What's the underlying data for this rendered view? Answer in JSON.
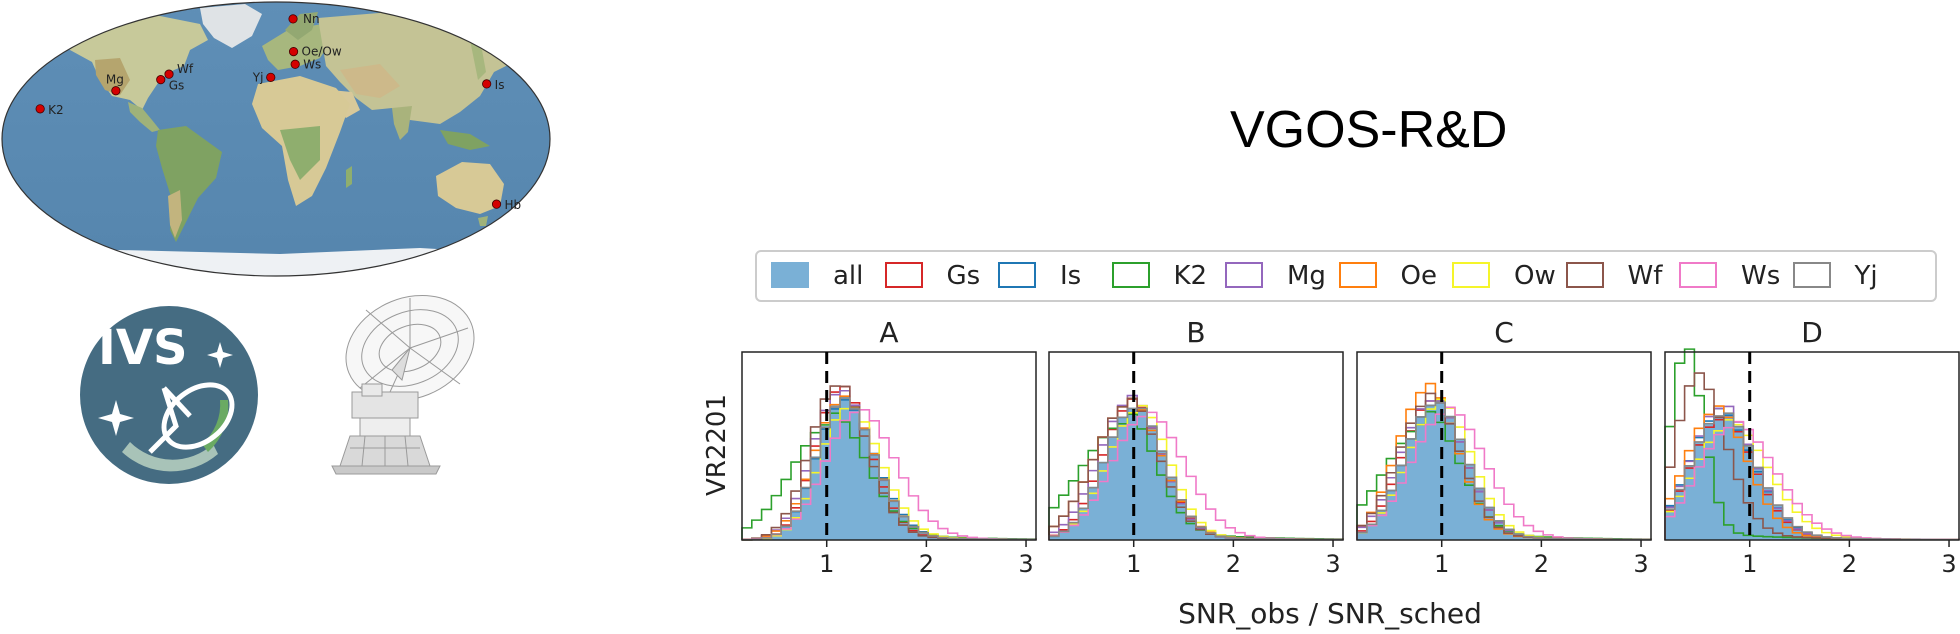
{
  "figure": {
    "title": "VGOS-R&D",
    "xlabel": "SNR_obs / SNR_sched",
    "ylabel": "VR2201"
  },
  "map": {
    "stations": [
      {
        "id": "Nn",
        "lon": 11.9,
        "lat": 78.9
      },
      {
        "id": "Oe/Ow",
        "lon": 11.9,
        "lat": 57.4
      },
      {
        "id": "Ws",
        "lon": 12.9,
        "lat": 49.1
      },
      {
        "id": "Yj",
        "lon": -3.5,
        "lat": 40.5
      },
      {
        "id": "Wf",
        "lon": -71.5,
        "lat": 42.6
      },
      {
        "id": "Gs",
        "lon": -76.8,
        "lat": 39.0
      },
      {
        "id": "Mg",
        "lon": -106.2,
        "lat": 31.7
      },
      {
        "id": "K2",
        "lon": -155.5,
        "lat": 19.8
      },
      {
        "id": "Is",
        "lon": 140.1,
        "lat": 36.2
      },
      {
        "id": "Hb",
        "lon": 147.4,
        "lat": -42.8
      }
    ],
    "station_color": "#d40000"
  },
  "logo": {
    "text": "IVS"
  },
  "chart_data": {
    "type": "histogram",
    "xlim": [
      0.15,
      3.1
    ],
    "xticks": [
      "1",
      "2",
      "3"
    ],
    "reference_line": 1,
    "legend": {
      "placement": "top",
      "entries": [
        "all",
        "Gs",
        "Is",
        "K2",
        "Mg",
        "Oe",
        "Ow",
        "Wf",
        "Ws",
        "Yj"
      ]
    },
    "colors": {
      "all": "#7ab0d6",
      "Gs": "#d62728",
      "Is": "#1f77b4",
      "K2": "#2ca02c",
      "Mg": "#9467bd",
      "Oe": "#ff7f0e",
      "Ow": "#f5f52a",
      "Wf": "#8c564b",
      "Ws": "#f07ac8",
      "Yj": "#888888"
    },
    "panels": [
      {
        "title": "A",
        "series": [
          {
            "name": "all",
            "peak": 1.15,
            "sl": 0.26,
            "sr": 0.32,
            "h": 0.74,
            "tail": 0.03
          },
          {
            "name": "Gs",
            "peak": 1.13,
            "sl": 0.25,
            "sr": 0.3,
            "h": 0.8,
            "tail": 0.03
          },
          {
            "name": "Is",
            "peak": 1.15,
            "sl": 0.26,
            "sr": 0.33,
            "h": 0.72,
            "tail": 0.03
          },
          {
            "name": "K2",
            "peak": 1.05,
            "sl": 0.4,
            "sr": 0.35,
            "h": 0.62,
            "tail": 0.06
          },
          {
            "name": "Mg",
            "peak": 1.12,
            "sl": 0.27,
            "sr": 0.33,
            "h": 0.78,
            "tail": 0.03
          },
          {
            "name": "Oe",
            "peak": 1.15,
            "sl": 0.28,
            "sr": 0.32,
            "h": 0.74,
            "tail": 0.03
          },
          {
            "name": "Ow",
            "peak": 1.2,
            "sl": 0.27,
            "sr": 0.33,
            "h": 0.7,
            "tail": 0.03
          },
          {
            "name": "Wf",
            "peak": 1.1,
            "sl": 0.27,
            "sr": 0.3,
            "h": 0.82,
            "tail": 0.03
          },
          {
            "name": "Ws",
            "peak": 1.3,
            "sl": 0.32,
            "sr": 0.38,
            "h": 0.68,
            "tail": 0.03
          },
          {
            "name": "Yj",
            "peak": 1.15,
            "sl": 0.26,
            "sr": 0.32,
            "h": 0.73,
            "tail": 0.03
          }
        ]
      },
      {
        "title": "B",
        "series": [
          {
            "name": "all",
            "peak": 1.0,
            "sl": 0.3,
            "sr": 0.3,
            "h": 0.7,
            "tail": 0.03
          },
          {
            "name": "Gs",
            "peak": 0.98,
            "sl": 0.3,
            "sr": 0.3,
            "h": 0.72,
            "tail": 0.03
          },
          {
            "name": "Is",
            "peak": 1.0,
            "sl": 0.3,
            "sr": 0.3,
            "h": 0.7,
            "tail": 0.03
          },
          {
            "name": "K2",
            "peak": 0.92,
            "sl": 0.45,
            "sr": 0.3,
            "h": 0.62,
            "tail": 0.07
          },
          {
            "name": "Mg",
            "peak": 0.97,
            "sl": 0.32,
            "sr": 0.3,
            "h": 0.74,
            "tail": 0.03
          },
          {
            "name": "Oe",
            "peak": 0.95,
            "sl": 0.35,
            "sr": 0.32,
            "h": 0.72,
            "tail": 0.04
          },
          {
            "name": "Ow",
            "peak": 1.05,
            "sl": 0.32,
            "sr": 0.3,
            "h": 0.69,
            "tail": 0.03
          },
          {
            "name": "Wf",
            "peak": 0.95,
            "sl": 0.35,
            "sr": 0.3,
            "h": 0.72,
            "tail": 0.04
          },
          {
            "name": "Ws",
            "peak": 1.12,
            "sl": 0.35,
            "sr": 0.38,
            "h": 0.66,
            "tail": 0.03
          },
          {
            "name": "Yj",
            "peak": 1.0,
            "sl": 0.3,
            "sr": 0.3,
            "h": 0.7,
            "tail": 0.03
          }
        ]
      },
      {
        "title": "C",
        "series": [
          {
            "name": "all",
            "peak": 0.92,
            "sl": 0.3,
            "sr": 0.32,
            "h": 0.72,
            "tail": 0.03
          },
          {
            "name": "Gs",
            "peak": 0.9,
            "sl": 0.3,
            "sr": 0.32,
            "h": 0.74,
            "tail": 0.03
          },
          {
            "name": "Is",
            "peak": 0.92,
            "sl": 0.3,
            "sr": 0.32,
            "h": 0.72,
            "tail": 0.03
          },
          {
            "name": "K2",
            "peak": 0.85,
            "sl": 0.42,
            "sr": 0.32,
            "h": 0.62,
            "tail": 0.07
          },
          {
            "name": "Mg",
            "peak": 0.9,
            "sl": 0.32,
            "sr": 0.32,
            "h": 0.74,
            "tail": 0.03
          },
          {
            "name": "Oe",
            "peak": 0.85,
            "sl": 0.3,
            "sr": 0.3,
            "h": 0.8,
            "tail": 0.04
          },
          {
            "name": "Ow",
            "peak": 0.97,
            "sl": 0.32,
            "sr": 0.32,
            "h": 0.72,
            "tail": 0.03
          },
          {
            "name": "Wf",
            "peak": 0.88,
            "sl": 0.32,
            "sr": 0.3,
            "h": 0.74,
            "tail": 0.04
          },
          {
            "name": "Ws",
            "peak": 1.05,
            "sl": 0.36,
            "sr": 0.38,
            "h": 0.68,
            "tail": 0.03
          },
          {
            "name": "Yj",
            "peak": 0.92,
            "sl": 0.3,
            "sr": 0.32,
            "h": 0.72,
            "tail": 0.03
          }
        ]
      },
      {
        "title": "D",
        "series": [
          {
            "name": "all",
            "peak": 0.7,
            "sl": 0.3,
            "sr": 0.35,
            "h": 0.66,
            "tail": 0.04
          },
          {
            "name": "Gs",
            "peak": 0.7,
            "sl": 0.3,
            "sr": 0.33,
            "h": 0.64,
            "tail": 0.04
          },
          {
            "name": "Is",
            "peak": 0.68,
            "sl": 0.3,
            "sr": 0.35,
            "h": 0.66,
            "tail": 0.04
          },
          {
            "name": "K2",
            "peak": 0.35,
            "sl": 0.15,
            "sr": 0.18,
            "h": 1.0,
            "tail": 0.05
          },
          {
            "name": "Mg",
            "peak": 0.7,
            "sl": 0.3,
            "sr": 0.33,
            "h": 0.7,
            "tail": 0.04
          },
          {
            "name": "Oe",
            "peak": 0.65,
            "sl": 0.3,
            "sr": 0.32,
            "h": 0.68,
            "tail": 0.04
          },
          {
            "name": "Ow",
            "peak": 0.78,
            "sl": 0.35,
            "sr": 0.4,
            "h": 0.6,
            "tail": 0.04
          },
          {
            "name": "Wf",
            "peak": 0.45,
            "sl": 0.2,
            "sr": 0.3,
            "h": 0.85,
            "tail": 0.05
          },
          {
            "name": "Ws",
            "peak": 0.82,
            "sl": 0.35,
            "sr": 0.42,
            "h": 0.6,
            "tail": 0.04
          },
          {
            "name": "Yj",
            "peak": 0.7,
            "sl": 0.3,
            "sr": 0.35,
            "h": 0.66,
            "tail": 0.04
          }
        ]
      }
    ]
  }
}
